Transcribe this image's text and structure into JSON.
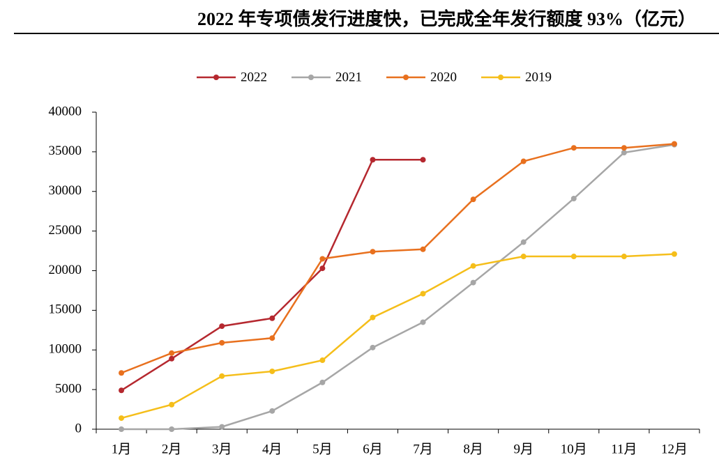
{
  "chart_data": {
    "type": "line",
    "title": "2022 年专项债发行进度快，已完成全年发行额度 93%（亿元）",
    "categories": [
      "1月",
      "2月",
      "3月",
      "4月",
      "5月",
      "6月",
      "7月",
      "8月",
      "9月",
      "10月",
      "11月",
      "12月"
    ],
    "series": [
      {
        "name": "2022",
        "color": "#b5282f",
        "values": [
          4900,
          8900,
          13000,
          14000,
          20300,
          34000,
          34000,
          null,
          null,
          null,
          null,
          null
        ]
      },
      {
        "name": "2021",
        "color": "#a6a6a6",
        "values": [
          0,
          0,
          300,
          2300,
          5900,
          10300,
          13500,
          18500,
          23600,
          29100,
          34900,
          35900
        ]
      },
      {
        "name": "2020",
        "color": "#e8701e",
        "values": [
          7100,
          9600,
          10900,
          11500,
          21500,
          22400,
          22700,
          29000,
          33800,
          35500,
          35500,
          36000
        ]
      },
      {
        "name": "2019",
        "color": "#f5be1a",
        "values": [
          1400,
          3100,
          6700,
          7300,
          8700,
          14100,
          17100,
          20600,
          21800,
          21800,
          21800,
          22100
        ]
      }
    ],
    "ylim": [
      0,
      40000
    ],
    "yticks": [
      0,
      5000,
      10000,
      15000,
      20000,
      25000,
      30000,
      35000,
      40000
    ],
    "legend": "top"
  }
}
